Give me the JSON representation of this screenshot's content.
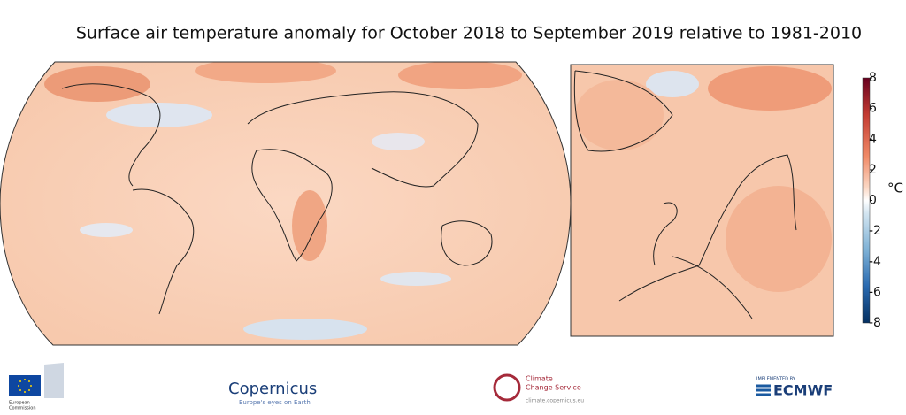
{
  "title": "Surface air temperature anomaly for October 2018 to September 2019 relative to 1981-2010",
  "colorbar": {
    "unit": "°C",
    "range": [
      -8,
      8
    ],
    "ticks": [
      -8,
      -6,
      -4,
      -2,
      0,
      2,
      4,
      6,
      8
    ]
  },
  "logos": {
    "commission": [
      "European",
      "Commission"
    ],
    "copernicus": "Copernicus",
    "copernicus_tagline": "Europe's eyes on Earth",
    "climate_service": [
      "Climate",
      "Change Service"
    ],
    "climate_url": "climate.copernicus.eu",
    "implemented_by": "IMPLEMENTED BY",
    "ecmwf": "ECMWF"
  }
}
